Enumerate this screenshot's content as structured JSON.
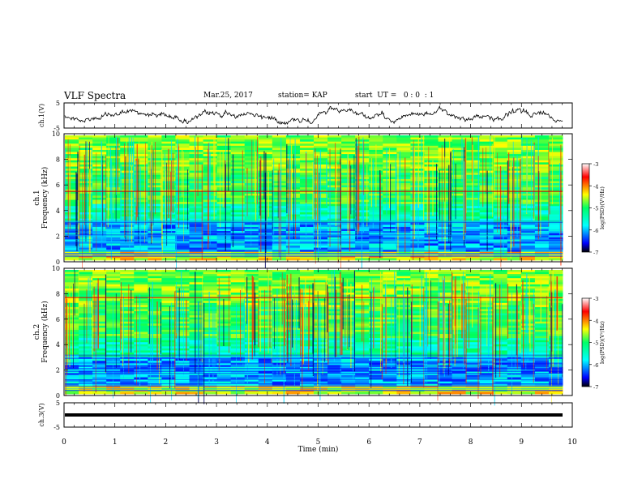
{
  "header": {
    "title": "VLF Spectra",
    "date": "Mar.25, 2017",
    "station": "station= KAP",
    "start_ut": "start  UT =   0 : 0  : 1"
  },
  "chart_data": [
    {
      "type": "line",
      "name": "channel-1-waveform",
      "ylabel": "ch.1(V)",
      "ylim": [
        -5,
        5
      ],
      "yticks": [
        "5",
        "-5"
      ],
      "xlim": [
        0,
        10
      ]
    },
    {
      "type": "heatmap",
      "name": "channel-1-spectrogram",
      "ylabel": "ch.1",
      "ylabel2": "Frequency (kHz)",
      "ylim": [
        0,
        10
      ],
      "yticks": [
        "0",
        "2",
        "4",
        "6",
        "8",
        "10"
      ],
      "xlim": [
        0,
        10
      ],
      "colorbar": {
        "label": "log(PSD)(V²/Hz)",
        "range": [
          -7,
          -3
        ],
        "ticks": [
          "-3",
          "-4",
          "-5",
          "-6",
          "-7"
        ]
      }
    },
    {
      "type": "heatmap",
      "name": "channel-2-spectrogram",
      "ylabel": "ch.2",
      "ylabel2": "Frequency (kHz)",
      "ylim": [
        0,
        10
      ],
      "yticks": [
        "0",
        "2",
        "4",
        "6",
        "8",
        "10"
      ],
      "xlim": [
        0,
        10
      ],
      "colorbar": {
        "label": "log(PSD)(V²/Hz)",
        "range": [
          -7,
          -3
        ],
        "ticks": [
          "-3",
          "-4",
          "-5",
          "-6",
          "-7"
        ]
      }
    },
    {
      "type": "line",
      "name": "channel-3-waveform",
      "ylabel": "ch.3(V)",
      "ylim": [
        -5,
        5
      ],
      "yticks": [
        "5",
        "-5"
      ],
      "xlim": [
        0,
        10
      ],
      "xlabel": "Time  (min)",
      "xticks": [
        "0",
        "1",
        "2",
        "3",
        "4",
        "5",
        "6",
        "7",
        "8",
        "9",
        "10"
      ]
    }
  ]
}
